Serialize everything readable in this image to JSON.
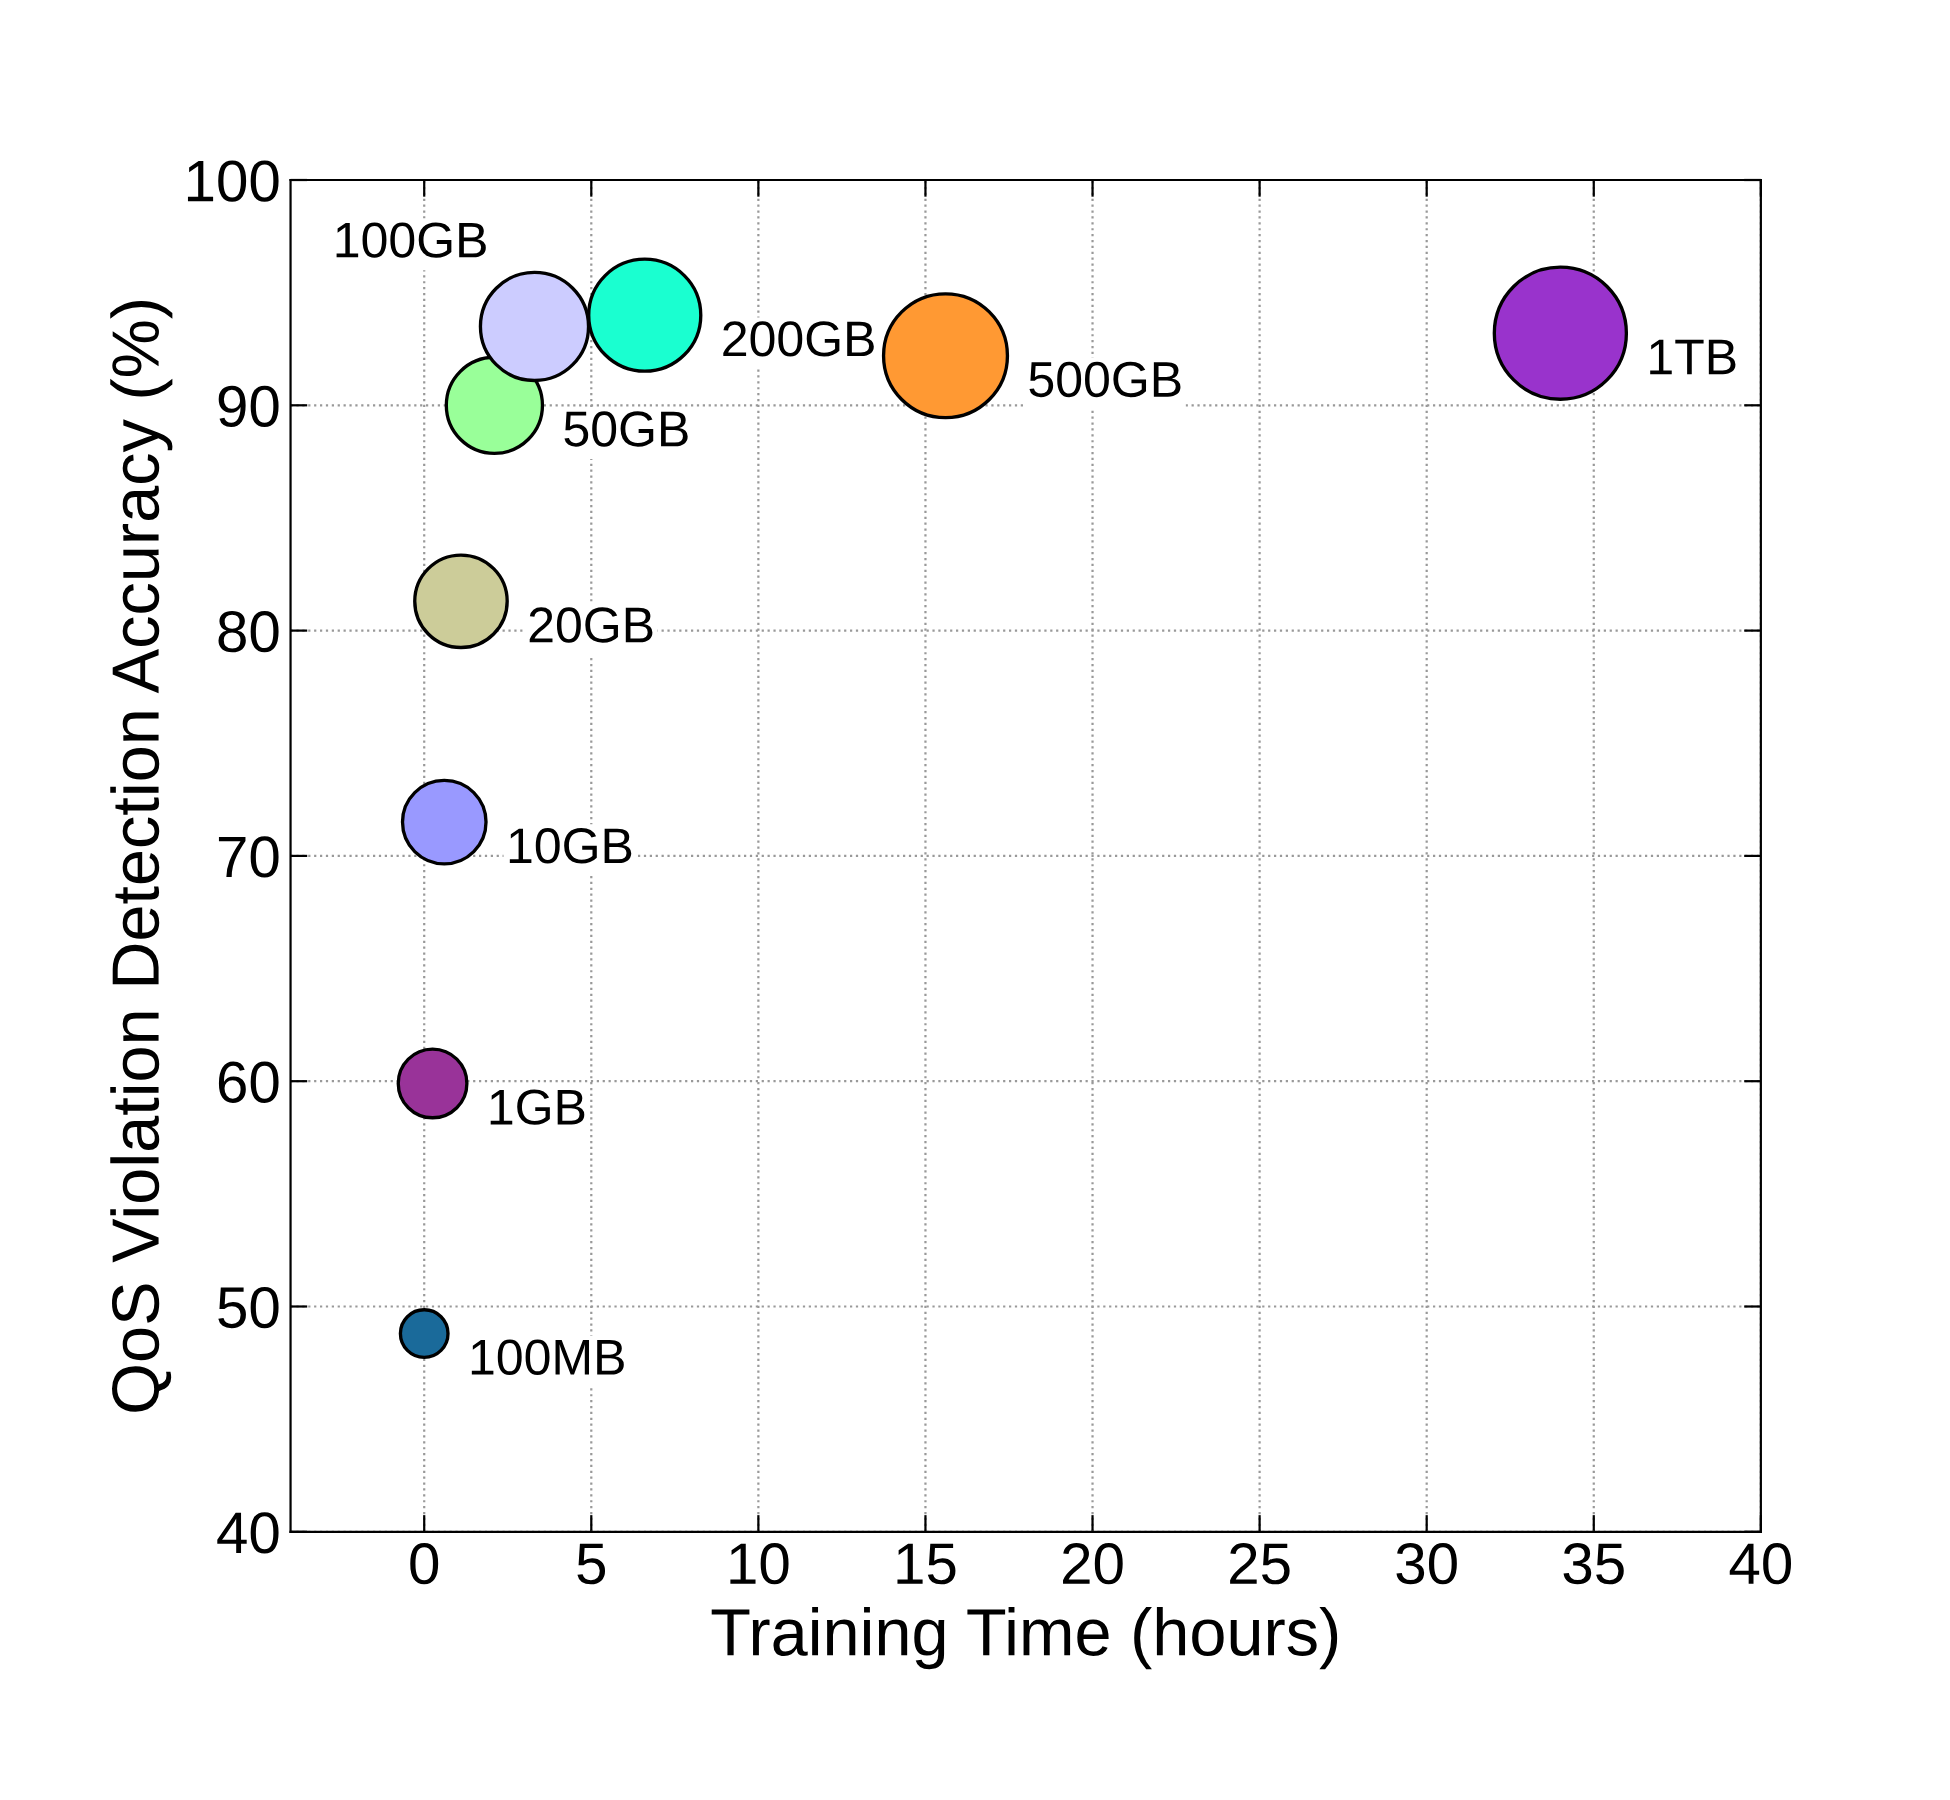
{
  "chart_data": {
    "type": "bubble",
    "xlabel": "Training Time (hours)",
    "ylabel": "QoS Violation Detection Accuracy (%)",
    "x": [
      0,
      0.25,
      0.6,
      1.1,
      2.1,
      3.3,
      6.6,
      15.6,
      34.0
    ],
    "series": [
      {
        "values": [
          48.8,
          59.9,
          71.5,
          81.3,
          90.0,
          93.5,
          94.0,
          92.2,
          93.2
        ],
        "sizes": [
          0.13,
          0.27,
          0.4,
          0.49,
          0.53,
          0.67,
          0.72,
          0.88,
          1
        ],
        "colors": [
          "#1a6a9a",
          "#993399",
          "#9999ff",
          "#cccc99",
          "#99ff99",
          "#ccccff",
          "#1affd0",
          "#ff9933",
          "#9933cc"
        ]
      }
    ],
    "annotations": [
      {
        "text": "100MB",
        "x": 0,
        "y": 48.8
      },
      {
        "text": "1GB",
        "x": 0.25,
        "y": 59.9
      },
      {
        "text": "10GB",
        "x": 0.6,
        "y": 71.5
      },
      {
        "text": "20GB",
        "x": 1.1,
        "y": 81.3
      },
      {
        "text": "50GB",
        "x": 2.1,
        "y": 90.0
      },
      {
        "text": "100GB",
        "x": 3.3,
        "y": 93.5
      },
      {
        "text": "200GB",
        "x": 6.6,
        "y": 94.0
      },
      {
        "text": "500GB",
        "x": 15.6,
        "y": 92.2
      },
      {
        "text": "1TB",
        "x": 34.0,
        "y": 93.2
      }
    ],
    "xlim": [
      -4,
      40
    ],
    "ylim": [
      40,
      100
    ],
    "xticks": [
      0,
      5,
      10,
      15,
      20,
      25,
      30,
      35,
      40
    ],
    "yticks": [
      40,
      50,
      60,
      70,
      80,
      90,
      100
    ],
    "grid": true
  }
}
